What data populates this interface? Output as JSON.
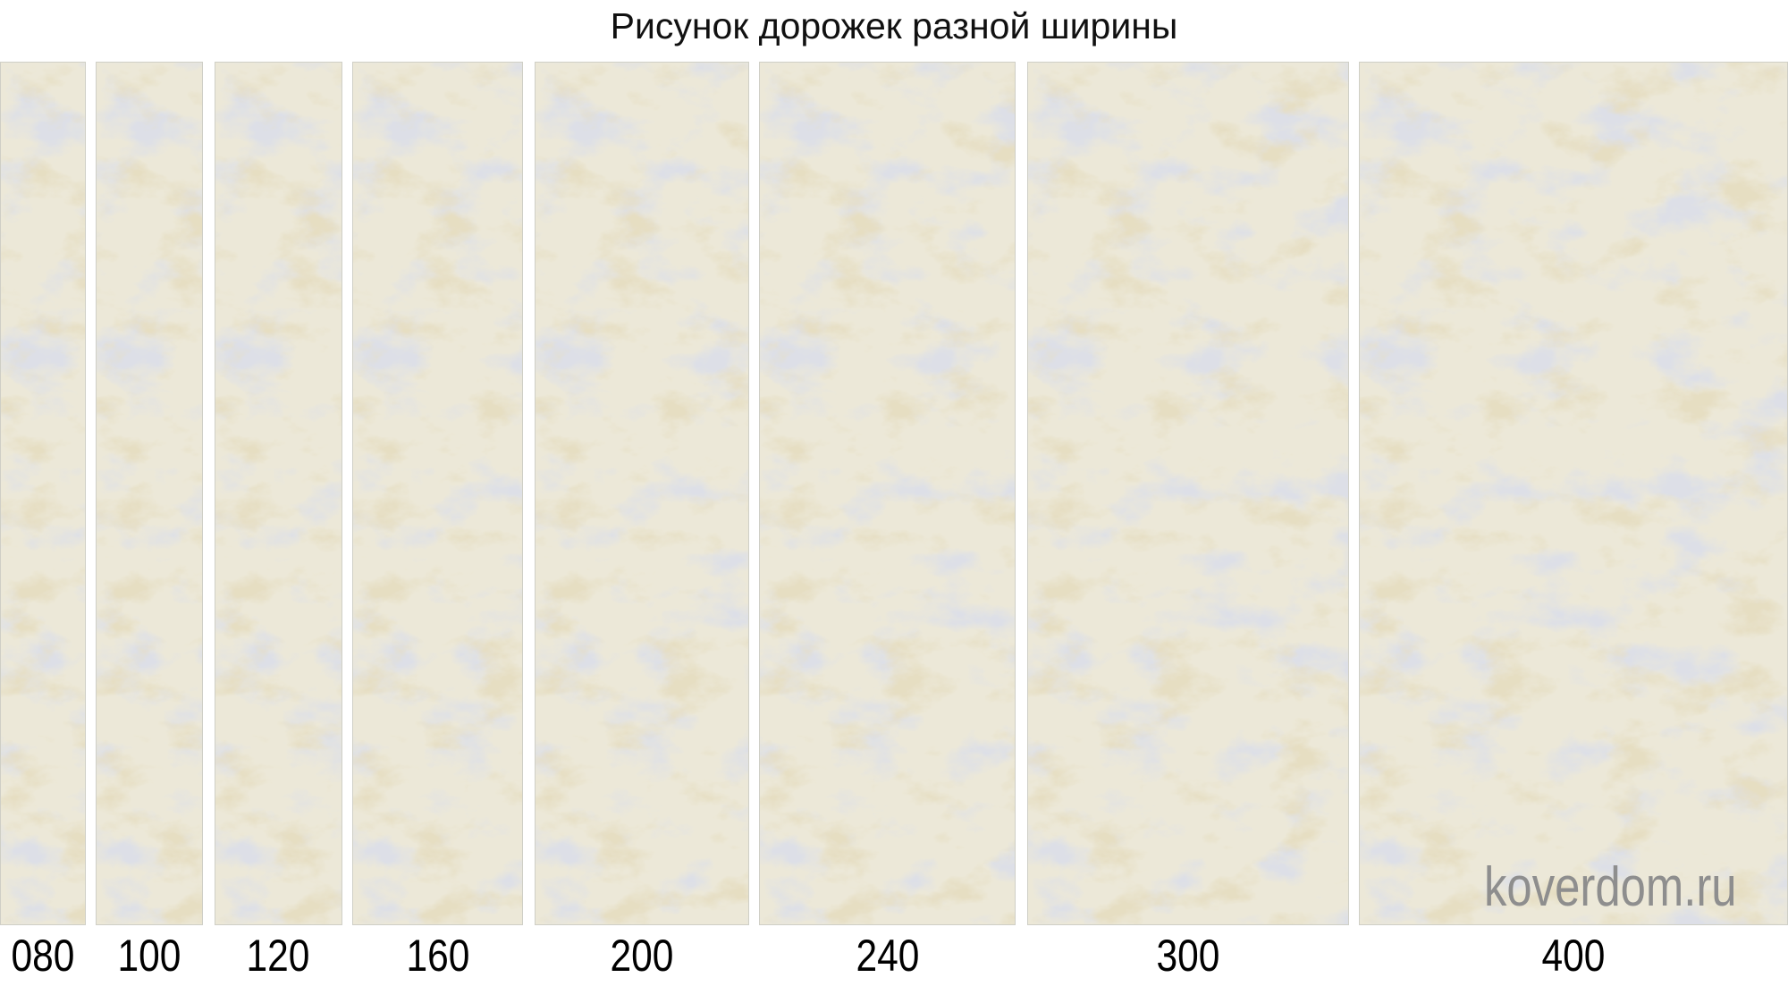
{
  "title": "Рисунок дорожек разной ширины",
  "strips": [
    {
      "label": "080"
    },
    {
      "label": "100"
    },
    {
      "label": "120"
    },
    {
      "label": "160"
    },
    {
      "label": "200"
    },
    {
      "label": "240"
    },
    {
      "label": "300"
    },
    {
      "label": "400"
    }
  ],
  "watermark": "koverdom.ru",
  "colors": {
    "base": "#ece8d8",
    "gray": "#b8bccb",
    "gold": "#c9b98a"
  }
}
